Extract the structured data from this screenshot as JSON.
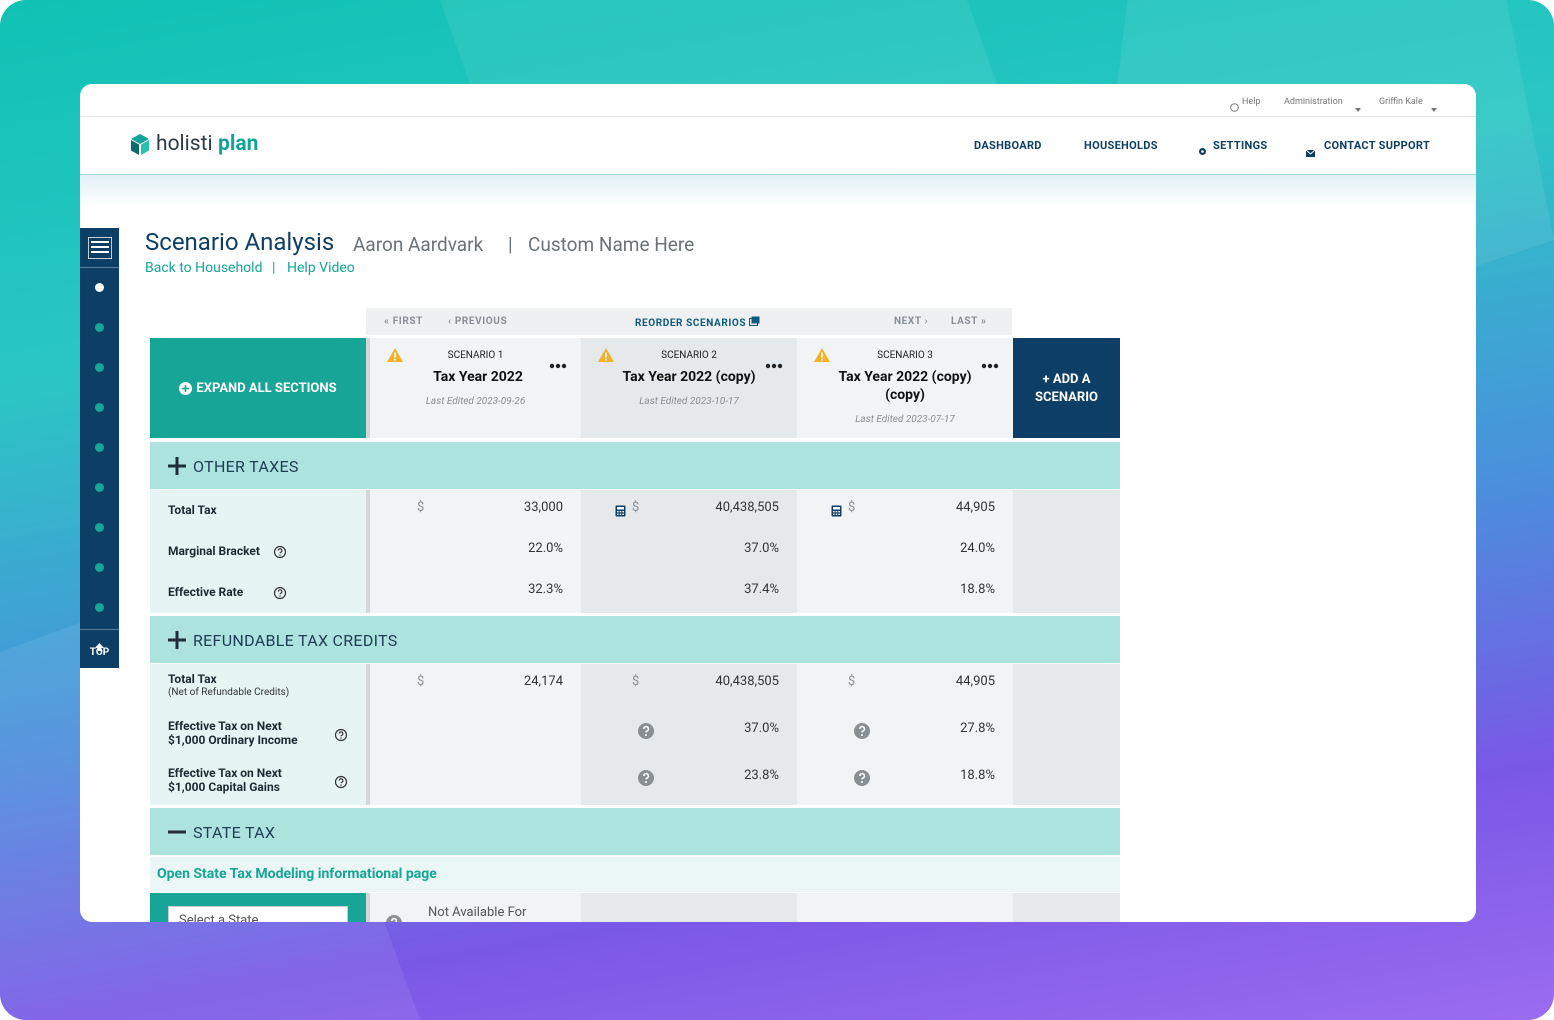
{
  "topbar": {
    "help": "Help",
    "admin": "Administration",
    "user": "Griffin Kale"
  },
  "logo": {
    "part1": "holisti",
    "part2": "plan"
  },
  "nav": [
    "DASHBOARD",
    "HOUSEHOLDS",
    "SETTINGS",
    "CONTACT SUPPORT"
  ],
  "header": {
    "title": "Scenario Analysis",
    "client": "Aaron Aardvark",
    "separator": "|",
    "custom_name": "Custom Name Here",
    "links": [
      "Back to Household",
      "Help Video"
    ]
  },
  "sidebar": {
    "top": "TOP"
  },
  "pager": {
    "first": "FIRST",
    "previous": "PREVIOUS",
    "reorder": "REORDER SCENARIOS",
    "next": "NEXT",
    "last": "LAST"
  },
  "expand_all": "EXPAND ALL SECTIONS",
  "add_scenario": "+ ADD A SCENARIO",
  "scenarios": [
    {
      "label": "SCENARIO 1",
      "name": "Tax Year 2022",
      "edited": "Last Edited 2023-09-26"
    },
    {
      "label": "SCENARIO 2",
      "name": "Tax Year 2022 (copy)",
      "edited": "Last Edited 2023-10-17"
    },
    {
      "label": "SCENARIO 3",
      "name": "Tax Year 2022 (copy) (copy)",
      "edited": "Last Edited 2023-07-17"
    }
  ],
  "sections": [
    {
      "title": "OTHER TAXES",
      "toggle": "plus",
      "rows": [
        {
          "label": "Total Tax",
          "cells": [
            {
              "prefix": "$",
              "value": "33,000"
            },
            {
              "icon": "calculator",
              "prefix": "$",
              "value": "40,438,505"
            },
            {
              "icon": "calculator",
              "prefix": "$",
              "value": "44,905"
            }
          ]
        },
        {
          "label": "Marginal Bracket",
          "help": true,
          "cells": [
            {
              "value": "22.0%"
            },
            {
              "value": "37.0%"
            },
            {
              "value": "24.0%"
            }
          ]
        },
        {
          "label": "Effective Rate",
          "help": true,
          "cells": [
            {
              "value": "32.3%"
            },
            {
              "value": "37.4%"
            },
            {
              "value": "18.8%"
            }
          ]
        }
      ]
    },
    {
      "title": "REFUNDABLE TAX CREDITS",
      "toggle": "plus",
      "rows": [
        {
          "label": "Total Tax",
          "note": "(Net of Refundable Credits)",
          "cells": [
            {
              "prefix": "$",
              "value": "24,174"
            },
            {
              "prefix": "$",
              "value": "40,438,505"
            },
            {
              "prefix": "$",
              "value": "44,905"
            }
          ]
        },
        {
          "label": "Effective Tax on Next $1,000 Ordinary Income",
          "help": true,
          "cells": [
            null,
            {
              "icon": "info",
              "value": "37.0%"
            },
            {
              "icon": "info",
              "value": "27.8%"
            }
          ]
        },
        {
          "label": "Effective Tax on Next $1,000 Capital Gains",
          "help": true,
          "cells": [
            null,
            {
              "icon": "info",
              "value": "23.8%"
            },
            {
              "icon": "info",
              "value": "18.8%"
            }
          ]
        }
      ]
    },
    {
      "title": "STATE TAX",
      "toggle": "minus",
      "rows": []
    }
  ],
  "state_tax": {
    "link": "Open State Tax Modeling informational page",
    "select": "Select a State",
    "not_available": "Not Available For"
  }
}
